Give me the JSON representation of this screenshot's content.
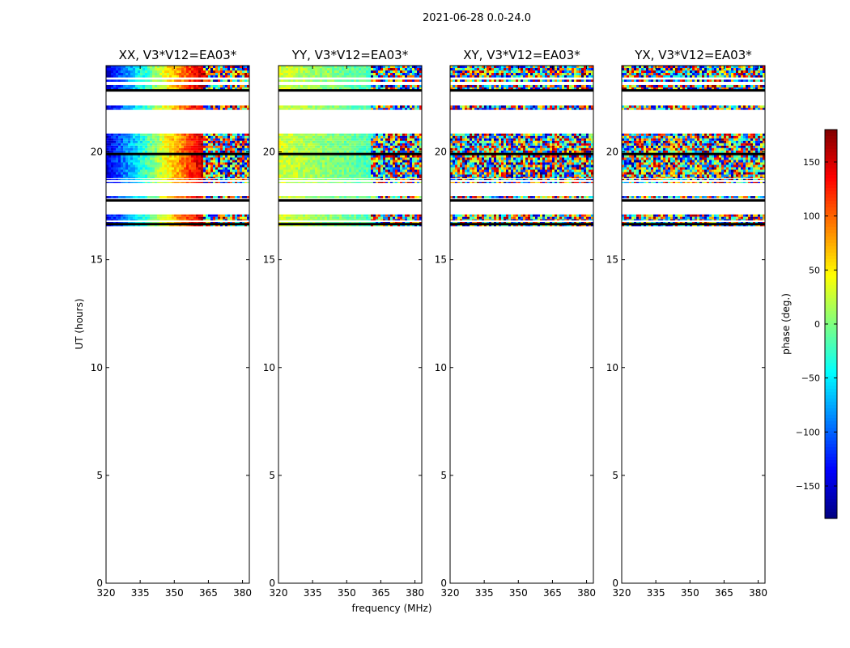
{
  "figure": {
    "suptitle": "2021-06-28 0.0-24.0",
    "xlabel": "frequency (MHz)",
    "ylabel": "UT (hours)",
    "colorbar_label": "phase (deg.)"
  },
  "chart_data": {
    "type": "heatmap",
    "colormap": "jet",
    "clim": [
      -180,
      180
    ],
    "colorbar_ticks": [
      150,
      100,
      50,
      0,
      -50,
      -100,
      -150
    ],
    "colorbar_tick_labels": [
      "150",
      "100",
      "50",
      "0",
      "−50",
      "−100",
      "−150"
    ],
    "xlim": [
      320,
      383
    ],
    "ylim": [
      0,
      24
    ],
    "x_ticks": [
      320,
      335,
      350,
      365,
      380
    ],
    "x_tick_labels": [
      "320",
      "335",
      "350",
      "365",
      "380"
    ],
    "y_ticks": [
      0,
      5,
      10,
      15,
      20
    ],
    "y_tick_labels": [
      "0",
      "5",
      "10",
      "15",
      "20"
    ],
    "data_bands_ut": [
      [
        16.55,
        16.6
      ],
      [
        16.7,
        16.75
      ],
      [
        16.82,
        17.1
      ],
      [
        17.85,
        17.95
      ],
      [
        18.55,
        18.6
      ],
      [
        18.7,
        18.75
      ],
      [
        18.78,
        19.85
      ],
      [
        19.95,
        20.85
      ],
      [
        21.95,
        22.15
      ],
      [
        22.8,
        23.1
      ],
      [
        23.25,
        23.35
      ],
      [
        23.45,
        24.0
      ]
    ],
    "flagged_lines_ut": [
      16.65,
      17.75,
      19.9,
      22.85
    ],
    "panels": [
      {
        "title": "XX, V3*V12=EA03*",
        "coherent_until_mhz": 363,
        "phase_start": -150,
        "phase_end": 160,
        "phase_jitter": 25
      },
      {
        "title": "YY, V3*V12=EA03*",
        "coherent_until_mhz": 361,
        "phase_start": 30,
        "phase_end": -20,
        "phase_jitter": 20
      },
      {
        "title": "XY, V3*V12=EA03*",
        "coherent_until_mhz": 320,
        "phase_start": 0,
        "phase_end": 0,
        "phase_jitter": 180
      },
      {
        "title": "YX, V3*V12=EA03*",
        "coherent_until_mhz": 320,
        "phase_start": 0,
        "phase_end": 0,
        "phase_jitter": 180
      }
    ]
  }
}
